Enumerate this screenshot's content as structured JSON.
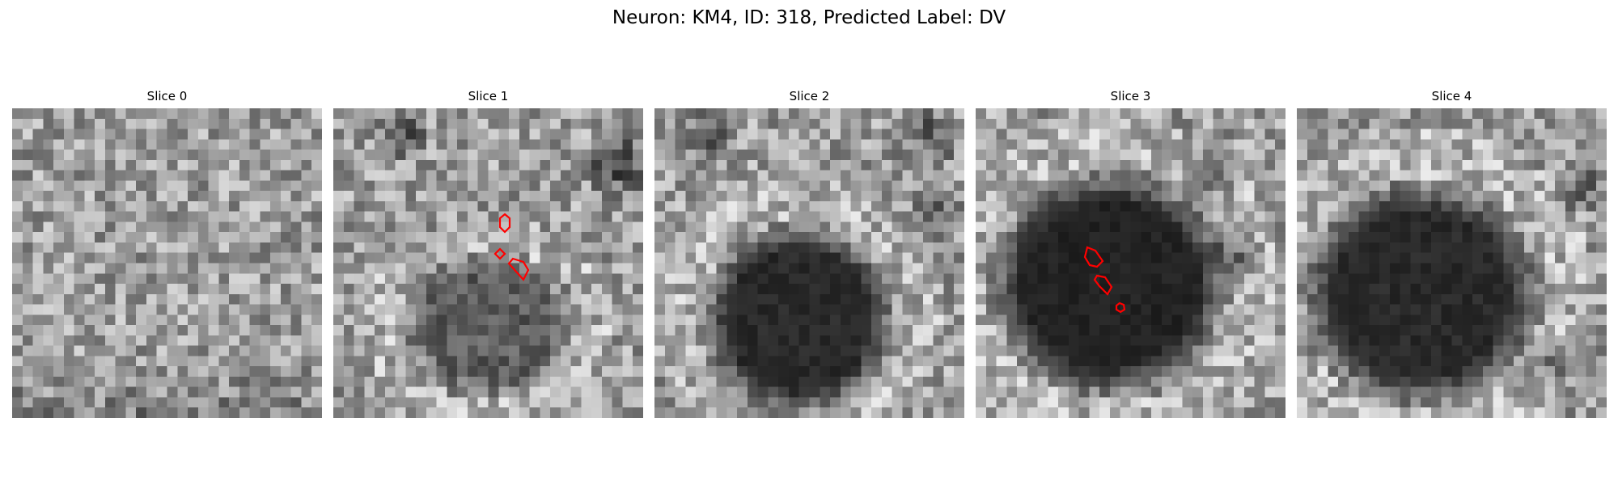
{
  "figure": {
    "title": "Neuron: KM4, ID: 318, Predicted Label: DV"
  },
  "colors": {
    "contour": "#ff0000",
    "background": "#ffffff"
  },
  "panels": [
    {
      "title": "Slice 0",
      "blob": false,
      "blob_strength": 0.0,
      "dark_strength": 0.1,
      "seed": 11
    },
    {
      "title": "Slice 1",
      "blob": true,
      "blob_strength": 0.45,
      "dark_strength": 0.35,
      "seed": 23
    },
    {
      "title": "Slice 2",
      "blob": true,
      "blob_strength": 0.8,
      "dark_strength": 0.3,
      "seed": 37
    },
    {
      "title": "Slice 3",
      "blob": true,
      "blob_strength": 0.85,
      "dark_strength": 0.35,
      "seed": 41
    },
    {
      "title": "Slice 4",
      "blob": true,
      "blob_strength": 0.8,
      "dark_strength": 0.3,
      "seed": 53
    }
  ]
}
